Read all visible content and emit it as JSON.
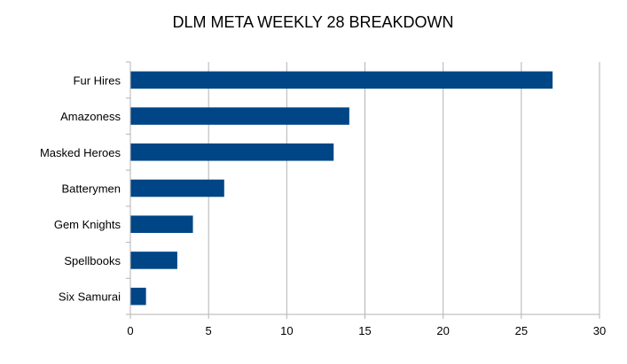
{
  "chart_data": {
    "type": "bar",
    "orientation": "horizontal",
    "title": "DLM META WEEKLY 28 BREAKDOWN",
    "xlabel": "",
    "ylabel": "",
    "categories": [
      "Fur Hires",
      "Amazoness",
      "Masked Heroes",
      "Batterymen",
      "Gem Knights",
      "Spellbooks",
      "Six Samurai"
    ],
    "values": [
      27,
      14,
      13,
      6,
      4,
      3,
      1
    ],
    "xlim": [
      0,
      30
    ],
    "xticks": [
      0,
      5,
      10,
      15,
      20,
      25,
      30
    ],
    "grid": true,
    "legend": "none",
    "bar_color": "#004586"
  }
}
